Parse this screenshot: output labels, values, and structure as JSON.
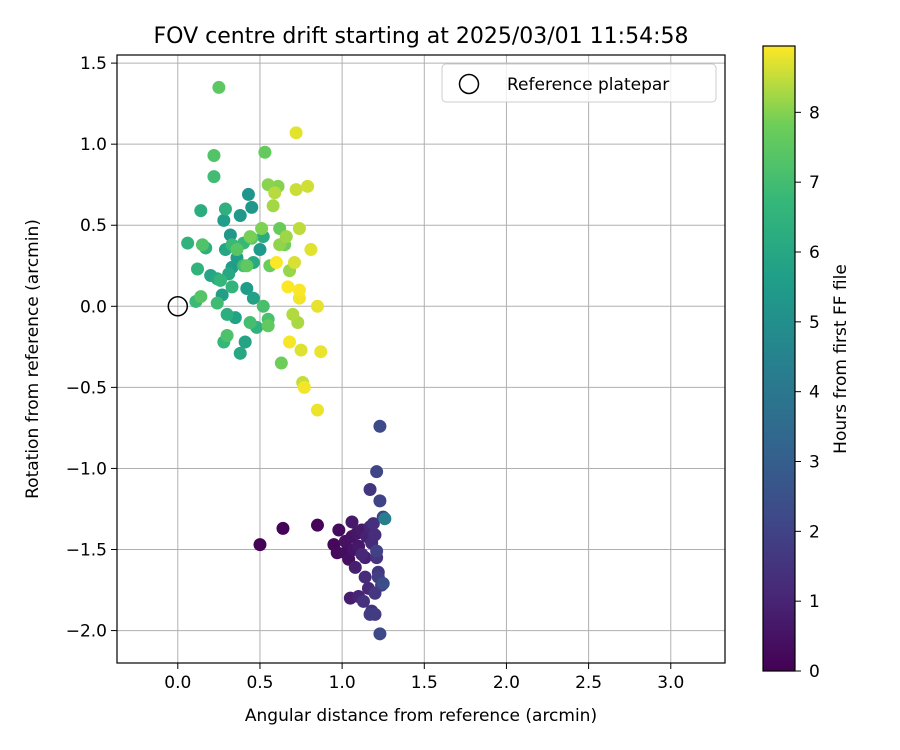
{
  "chart_data": {
    "type": "scatter",
    "title": "FOV centre drift starting at 2025/03/01 11:54:58",
    "xlabel": "Angular distance from reference (arcmin)",
    "ylabel": "Rotation from reference (arcmin)",
    "xlim": [
      -0.37,
      3.33
    ],
    "ylim": [
      -2.2,
      1.55
    ],
    "x_ticks": [
      0.0,
      0.5,
      1.0,
      1.5,
      2.0,
      2.5,
      3.0
    ],
    "x_tick_labels": [
      "0.0",
      "0.5",
      "1.0",
      "1.5",
      "2.0",
      "2.5",
      "3.0"
    ],
    "y_ticks": [
      -2.0,
      -1.5,
      -1.0,
      -0.5,
      0.0,
      0.5,
      1.0,
      1.5
    ],
    "y_tick_labels": [
      "−2.0",
      "−1.5",
      "−1.0",
      "−0.5",
      "0.0",
      "0.5",
      "1.0",
      "1.5"
    ],
    "grid": true,
    "legend": {
      "placement": "top-right",
      "entries": [
        "Reference platepar"
      ]
    },
    "reference": {
      "x": 0.0,
      "y": 0.0,
      "label": "Reference platepar"
    },
    "colorbar": {
      "label": "Hours from first FF file",
      "colormap": "viridis",
      "range": [
        0,
        8.95
      ],
      "ticks": [
        0,
        1,
        2,
        3,
        4,
        5,
        6,
        7,
        8
      ],
      "tick_labels": [
        "0",
        "1",
        "2",
        "3",
        "4",
        "5",
        "6",
        "7",
        "8"
      ]
    },
    "points": [
      {
        "x": 0.5,
        "y": -1.47,
        "h": 0.05
      },
      {
        "x": 0.64,
        "y": -1.37,
        "h": 0.1
      },
      {
        "x": 0.85,
        "y": -1.35,
        "h": 0.15
      },
      {
        "x": 0.95,
        "y": -1.47,
        "h": 0.2
      },
      {
        "x": 0.97,
        "y": -1.52,
        "h": 0.25
      },
      {
        "x": 0.98,
        "y": -1.38,
        "h": 0.3
      },
      {
        "x": 1.02,
        "y": -1.52,
        "h": 0.35
      },
      {
        "x": 1.04,
        "y": -1.56,
        "h": 0.4
      },
      {
        "x": 1.02,
        "y": -1.45,
        "h": 0.45
      },
      {
        "x": 1.06,
        "y": -1.42,
        "h": 0.5
      },
      {
        "x": 1.07,
        "y": -1.5,
        "h": 0.55
      },
      {
        "x": 1.09,
        "y": -1.4,
        "h": 0.6
      },
      {
        "x": 1.1,
        "y": -1.48,
        "h": 0.65
      },
      {
        "x": 1.06,
        "y": -1.33,
        "h": 0.7
      },
      {
        "x": 1.12,
        "y": -1.38,
        "h": 0.75
      },
      {
        "x": 1.05,
        "y": -1.8,
        "h": 0.8
      },
      {
        "x": 1.08,
        "y": -1.61,
        "h": 0.85
      },
      {
        "x": 1.14,
        "y": -1.55,
        "h": 0.9
      },
      {
        "x": 1.15,
        "y": -1.42,
        "h": 0.95
      },
      {
        "x": 1.1,
        "y": -1.79,
        "h": 1.0
      },
      {
        "x": 1.17,
        "y": -1.36,
        "h": 1.05
      },
      {
        "x": 1.12,
        "y": -1.53,
        "h": 1.1
      },
      {
        "x": 1.16,
        "y": -1.74,
        "h": 1.15
      },
      {
        "x": 1.18,
        "y": -1.46,
        "h": 1.2
      },
      {
        "x": 1.14,
        "y": -1.67,
        "h": 1.25
      },
      {
        "x": 1.2,
        "y": -1.41,
        "h": 1.3
      },
      {
        "x": 1.19,
        "y": -1.34,
        "h": 1.35
      },
      {
        "x": 1.13,
        "y": -1.82,
        "h": 1.4
      },
      {
        "x": 1.18,
        "y": -1.88,
        "h": 1.45
      },
      {
        "x": 1.21,
        "y": -1.55,
        "h": 1.5
      },
      {
        "x": 1.17,
        "y": -1.13,
        "h": 1.55
      },
      {
        "x": 1.2,
        "y": -1.77,
        "h": 1.6
      },
      {
        "x": 1.22,
        "y": -1.64,
        "h": 1.65
      },
      {
        "x": 1.2,
        "y": -1.9,
        "h": 1.7
      },
      {
        "x": 1.24,
        "y": -1.72,
        "h": 1.75
      },
      {
        "x": 1.17,
        "y": -1.9,
        "h": 1.8
      },
      {
        "x": 1.22,
        "y": -1.67,
        "h": 1.85
      },
      {
        "x": 1.25,
        "y": -1.3,
        "h": 1.9
      },
      {
        "x": 1.21,
        "y": -1.51,
        "h": 1.95
      },
      {
        "x": 1.23,
        "y": -1.2,
        "h": 2.0
      },
      {
        "x": 1.21,
        "y": -1.02,
        "h": 2.1
      },
      {
        "x": 1.23,
        "y": -2.02,
        "h": 2.2
      },
      {
        "x": 1.23,
        "y": -0.74,
        "h": 2.3
      },
      {
        "x": 1.25,
        "y": -1.71,
        "h": 2.4
      },
      {
        "x": 1.26,
        "y": -1.31,
        "h": 4.3
      },
      {
        "x": 0.43,
        "y": 0.69,
        "h": 5.2
      },
      {
        "x": 0.45,
        "y": 0.61,
        "h": 5.3
      },
      {
        "x": 0.32,
        "y": 0.44,
        "h": 5.35
      },
      {
        "x": 0.38,
        "y": 0.56,
        "h": 5.4
      },
      {
        "x": 0.5,
        "y": 0.35,
        "h": 5.45
      },
      {
        "x": 0.33,
        "y": 0.24,
        "h": 5.5
      },
      {
        "x": 0.42,
        "y": 0.11,
        "h": 5.55
      },
      {
        "x": 0.28,
        "y": 0.53,
        "h": 5.6
      },
      {
        "x": 0.36,
        "y": 0.3,
        "h": 5.65
      },
      {
        "x": 0.27,
        "y": 0.07,
        "h": 5.7
      },
      {
        "x": 0.46,
        "y": 0.05,
        "h": 5.75
      },
      {
        "x": 0.35,
        "y": -0.07,
        "h": 5.8
      },
      {
        "x": 0.41,
        "y": -0.22,
        "h": 5.85
      },
      {
        "x": 0.2,
        "y": 0.19,
        "h": 5.9
      },
      {
        "x": 0.29,
        "y": 0.35,
        "h": 5.95
      },
      {
        "x": 0.38,
        "y": -0.29,
        "h": 6.0
      },
      {
        "x": 0.31,
        "y": 0.2,
        "h": 6.05
      },
      {
        "x": 0.46,
        "y": 0.27,
        "h": 6.1
      },
      {
        "x": 0.24,
        "y": 0.17,
        "h": 6.15
      },
      {
        "x": 0.52,
        "y": 0.43,
        "h": 6.2
      },
      {
        "x": 0.14,
        "y": 0.59,
        "h": 6.25
      },
      {
        "x": 0.3,
        "y": -0.05,
        "h": 6.3
      },
      {
        "x": 0.17,
        "y": 0.36,
        "h": 6.35
      },
      {
        "x": 0.29,
        "y": 0.6,
        "h": 6.4
      },
      {
        "x": 0.48,
        "y": -0.13,
        "h": 6.45
      },
      {
        "x": 0.06,
        "y": 0.39,
        "h": 6.5
      },
      {
        "x": 0.12,
        "y": 0.23,
        "h": 6.55
      },
      {
        "x": 0.33,
        "y": 0.12,
        "h": 6.6
      },
      {
        "x": 0.26,
        "y": 0.16,
        "h": 6.65
      },
      {
        "x": 0.28,
        "y": -0.22,
        "h": 6.7
      },
      {
        "x": 0.4,
        "y": 0.39,
        "h": 6.75
      },
      {
        "x": 0.33,
        "y": 0.38,
        "h": 6.8
      },
      {
        "x": 0.11,
        "y": 0.03,
        "h": 6.85
      },
      {
        "x": 0.24,
        "y": 0.02,
        "h": 6.9
      },
      {
        "x": 0.22,
        "y": 0.8,
        "h": 6.95
      },
      {
        "x": 0.4,
        "y": 0.25,
        "h": 7.0
      },
      {
        "x": 0.44,
        "y": -0.1,
        "h": 7.05
      },
      {
        "x": 0.52,
        "y": 0.0,
        "h": 7.1
      },
      {
        "x": 0.55,
        "y": -0.08,
        "h": 7.15
      },
      {
        "x": 0.3,
        "y": -0.18,
        "h": 7.2
      },
      {
        "x": 0.15,
        "y": 0.38,
        "h": 7.25
      },
      {
        "x": 0.22,
        "y": 0.93,
        "h": 7.3
      },
      {
        "x": 0.14,
        "y": 0.06,
        "h": 7.35
      },
      {
        "x": 0.36,
        "y": 0.35,
        "h": 7.4
      },
      {
        "x": 0.45,
        "y": 0.42,
        "h": 7.45
      },
      {
        "x": 0.25,
        "y": 1.35,
        "h": 7.5
      },
      {
        "x": 0.42,
        "y": 0.25,
        "h": 7.55
      },
      {
        "x": 0.55,
        "y": -0.12,
        "h": 7.6
      },
      {
        "x": 0.53,
        "y": 0.95,
        "h": 7.65
      },
      {
        "x": 0.62,
        "y": 0.48,
        "h": 7.7
      },
      {
        "x": 0.56,
        "y": 0.25,
        "h": 7.75
      },
      {
        "x": 0.63,
        "y": -0.35,
        "h": 7.8
      },
      {
        "x": 0.65,
        "y": 0.38,
        "h": 7.85
      },
      {
        "x": 0.44,
        "y": 0.43,
        "h": 7.9
      },
      {
        "x": 0.51,
        "y": 0.48,
        "h": 7.95
      },
      {
        "x": 0.61,
        "y": 0.74,
        "h": 8.0
      },
      {
        "x": 0.55,
        "y": 0.75,
        "h": 8.05
      },
      {
        "x": 0.62,
        "y": 0.38,
        "h": 8.1
      },
      {
        "x": 0.68,
        "y": 0.22,
        "h": 8.15
      },
      {
        "x": 0.66,
        "y": 0.43,
        "h": 8.2
      },
      {
        "x": 0.58,
        "y": 0.62,
        "h": 8.25
      },
      {
        "x": 0.73,
        "y": -0.1,
        "h": 8.3
      },
      {
        "x": 0.7,
        "y": -0.05,
        "h": 8.35
      },
      {
        "x": 0.59,
        "y": 0.7,
        "h": 8.4
      },
      {
        "x": 0.74,
        "y": 0.48,
        "h": 8.45
      },
      {
        "x": 0.76,
        "y": -0.47,
        "h": 8.5
      },
      {
        "x": 0.72,
        "y": 0.72,
        "h": 8.55
      },
      {
        "x": 0.79,
        "y": 0.74,
        "h": 8.6
      },
      {
        "x": 0.71,
        "y": 0.27,
        "h": 8.65
      },
      {
        "x": 0.75,
        "y": -0.27,
        "h": 8.7
      },
      {
        "x": 0.81,
        "y": 0.35,
        "h": 8.72
      },
      {
        "x": 0.72,
        "y": 1.07,
        "h": 8.75
      },
      {
        "x": 0.85,
        "y": 0.0,
        "h": 8.78
      },
      {
        "x": 0.87,
        "y": -0.28,
        "h": 8.8
      },
      {
        "x": 0.85,
        "y": -0.64,
        "h": 8.82
      },
      {
        "x": 0.74,
        "y": 0.05,
        "h": 8.85
      },
      {
        "x": 0.77,
        "y": -0.5,
        "h": 8.87
      },
      {
        "x": 0.68,
        "y": -0.22,
        "h": 8.9
      },
      {
        "x": 0.74,
        "y": 0.1,
        "h": 8.92
      },
      {
        "x": 0.6,
        "y": 0.27,
        "h": 8.93
      },
      {
        "x": 0.67,
        "y": 0.12,
        "h": 8.94
      }
    ]
  }
}
